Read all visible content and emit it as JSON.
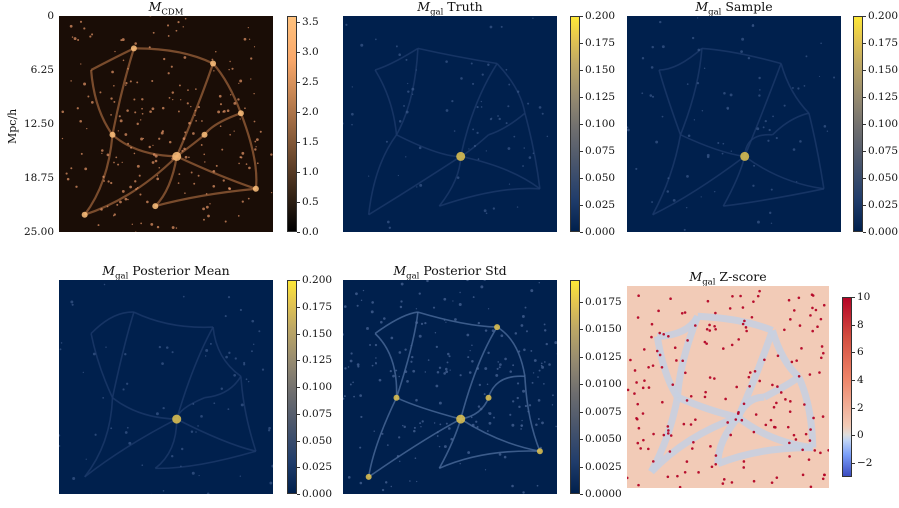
{
  "chart_data": [
    {
      "type": "heatmap",
      "title": "M_CDM",
      "title_main": "M",
      "title_sub": "CDM",
      "title_rest": "",
      "ylabel": "Mpc/h",
      "yticks": [
        "0",
        "6.25",
        "12.50",
        "18.75",
        "25.00"
      ],
      "ylim": [
        0,
        25
      ],
      "colormap": "copper",
      "colorbar_range": [
        0,
        3.6
      ],
      "colorbar_ticks": [
        "3.5",
        "3.0",
        "2.5",
        "2.0",
        "1.5",
        "1.0",
        "0.5",
        "0.0"
      ],
      "colorbar_values": [
        3.5,
        3.0,
        2.5,
        2.0,
        1.5,
        1.0,
        0.5,
        0.0
      ]
    },
    {
      "type": "heatmap",
      "title": "M_gal Truth",
      "title_main": "M",
      "title_sub": "gal",
      "title_rest": " Truth",
      "colormap": "cividis",
      "colorbar_range": [
        0,
        0.2
      ],
      "colorbar_ticks": [
        "0.200",
        "0.175",
        "0.150",
        "0.125",
        "0.100",
        "0.075",
        "0.050",
        "0.025",
        "0.000"
      ],
      "colorbar_values": [
        0.2,
        0.175,
        0.15,
        0.125,
        0.1,
        0.075,
        0.05,
        0.025,
        0.0
      ]
    },
    {
      "type": "heatmap",
      "title": "M_gal Sample",
      "title_main": "M",
      "title_sub": "gal",
      "title_rest": " Sample",
      "colormap": "cividis",
      "colorbar_range": [
        0,
        0.2
      ],
      "colorbar_ticks": [
        "0.200",
        "0.175",
        "0.150",
        "0.125",
        "0.100",
        "0.075",
        "0.050",
        "0.025",
        "0.000"
      ],
      "colorbar_values": [
        0.2,
        0.175,
        0.15,
        0.125,
        0.1,
        0.075,
        0.05,
        0.025,
        0.0
      ]
    },
    {
      "type": "heatmap",
      "title": "M_gal Posterior Mean",
      "title_main": "M",
      "title_sub": "gal",
      "title_rest": " Posterior Mean",
      "colormap": "cividis",
      "colorbar_range": [
        0,
        0.2
      ],
      "colorbar_ticks": [
        "0.200",
        "0.175",
        "0.150",
        "0.125",
        "0.100",
        "0.075",
        "0.050",
        "0.025",
        "0.000"
      ],
      "colorbar_values": [
        0.2,
        0.175,
        0.15,
        0.125,
        0.1,
        0.075,
        0.05,
        0.025,
        0.0
      ]
    },
    {
      "type": "heatmap",
      "title": "M_gal Posterior Std",
      "title_main": "M",
      "title_sub": "gal",
      "title_rest": " Posterior Std",
      "colormap": "cividis",
      "colorbar_range": [
        0,
        0.0195
      ],
      "colorbar_ticks": [
        "0.0175",
        "0.0150",
        "0.0125",
        "0.0100",
        "0.0075",
        "0.0050",
        "0.0025",
        "0.0000"
      ],
      "colorbar_values": [
        0.0175,
        0.015,
        0.0125,
        0.01,
        0.0075,
        0.005,
        0.0025,
        0.0
      ]
    },
    {
      "type": "heatmap",
      "title": "M_gal Z-score",
      "title_main": "M",
      "title_sub": "gal",
      "title_rest": " Z-score",
      "colormap": "coolwarm",
      "colorbar_range": [
        -3,
        10
      ],
      "colorbar_ticks": [
        "10",
        "8",
        "6",
        "4",
        "2",
        "0",
        "−2"
      ],
      "colorbar_values": [
        10,
        8,
        6,
        4,
        2,
        0,
        -2
      ]
    }
  ]
}
